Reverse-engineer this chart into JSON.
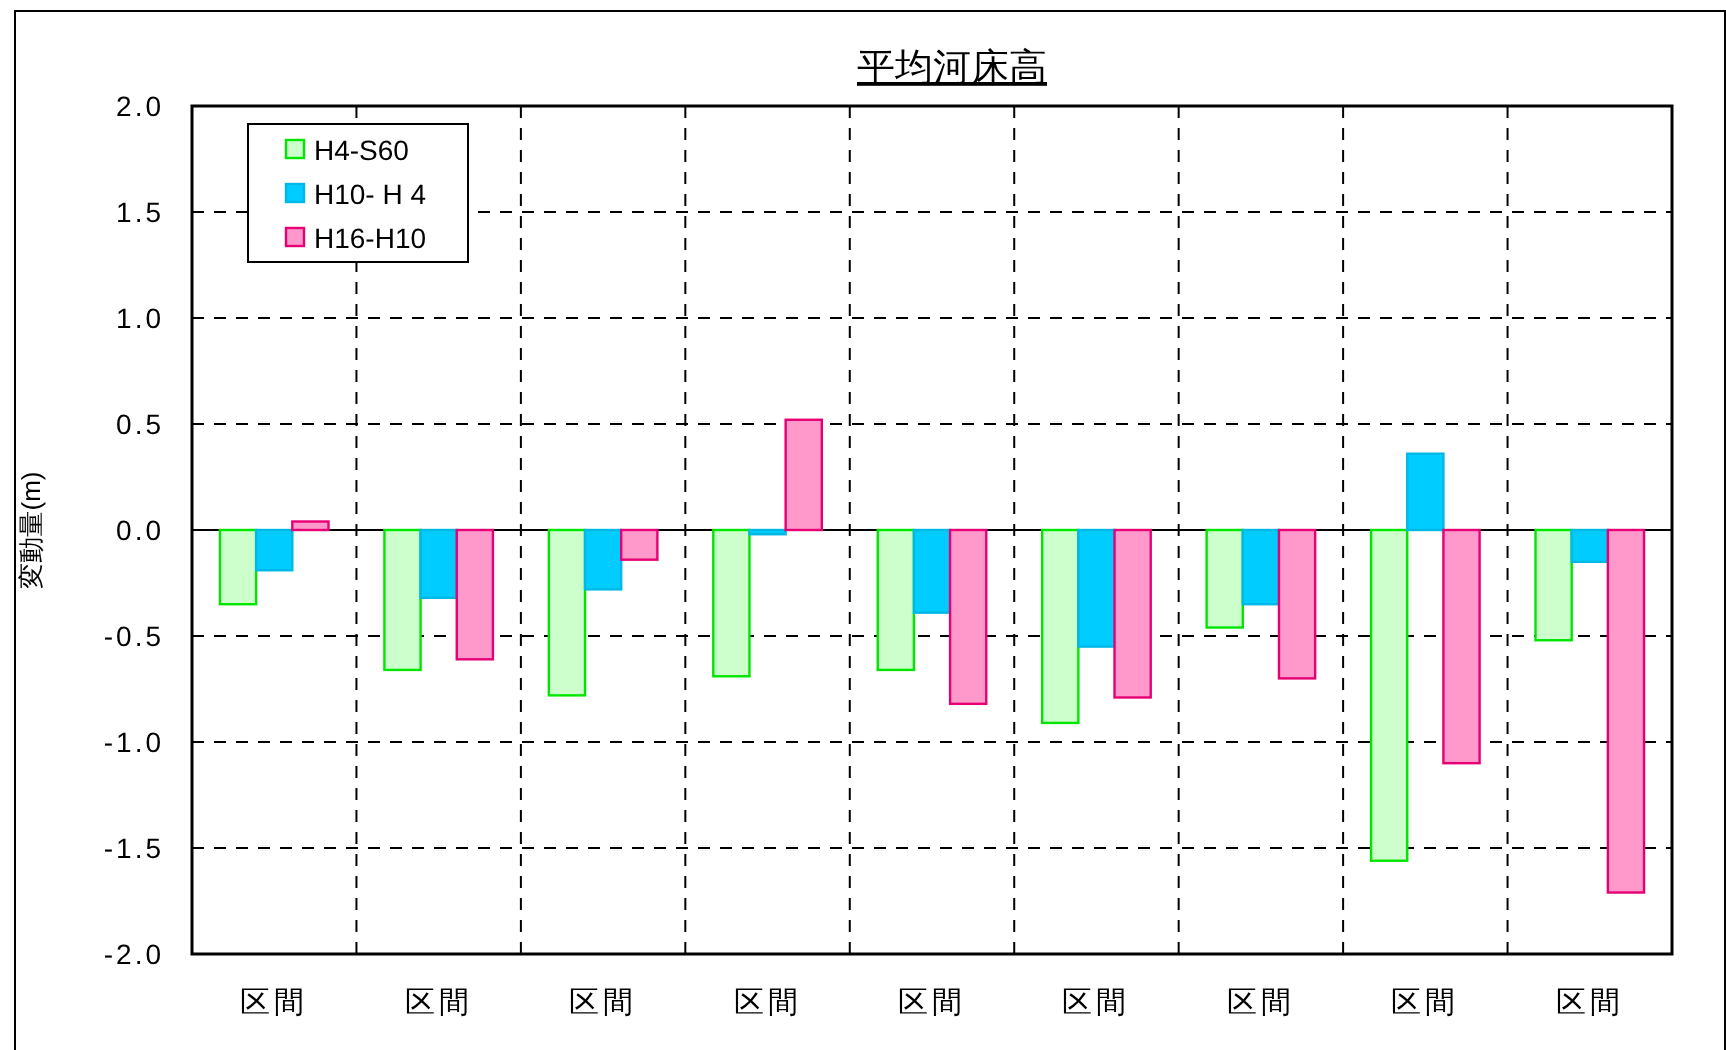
{
  "chart_data": {
    "type": "bar",
    "title": "平均河床高",
    "ylabel": "変動量(m)",
    "categories": [
      "区間",
      "区間",
      "区間",
      "区間",
      "区間",
      "区間",
      "区間",
      "区間",
      "区間"
    ],
    "series": [
      {
        "name": "H4-S60",
        "color": "#ccffcc",
        "values": [
          -0.35,
          -0.66,
          -0.78,
          -0.69,
          -0.66,
          -0.91,
          -0.46,
          -1.56,
          -0.52
        ]
      },
      {
        "name": "H10- H 4",
        "color": "#00ccff",
        "values": [
          -0.19,
          -0.32,
          -0.28,
          -0.02,
          -0.39,
          -0.55,
          -0.35,
          0.36,
          -0.15
        ]
      },
      {
        "name": "H16-H10",
        "color": "#ff99cc",
        "values": [
          0.04,
          -0.61,
          -0.14,
          0.52,
          -0.82,
          -0.79,
          -0.7,
          -1.1,
          -1.71
        ]
      }
    ],
    "ylim": [
      -2,
      2
    ],
    "yticks": [
      {
        "value": -2,
        "label": "-2.0"
      },
      {
        "value": -1.5,
        "label": "-1.5"
      },
      {
        "value": -1,
        "label": "-1.0"
      },
      {
        "value": -0.5,
        "label": "-0.5"
      },
      {
        "value": 0,
        "label": "0.0"
      },
      {
        "value": 0.5,
        "label": "0.5"
      },
      {
        "value": 1,
        "label": "1.0"
      },
      {
        "value": 1.5,
        "label": "1.5"
      },
      {
        "value": 2,
        "label": "2.0"
      }
    ],
    "grid": true,
    "legend": "top left"
  }
}
